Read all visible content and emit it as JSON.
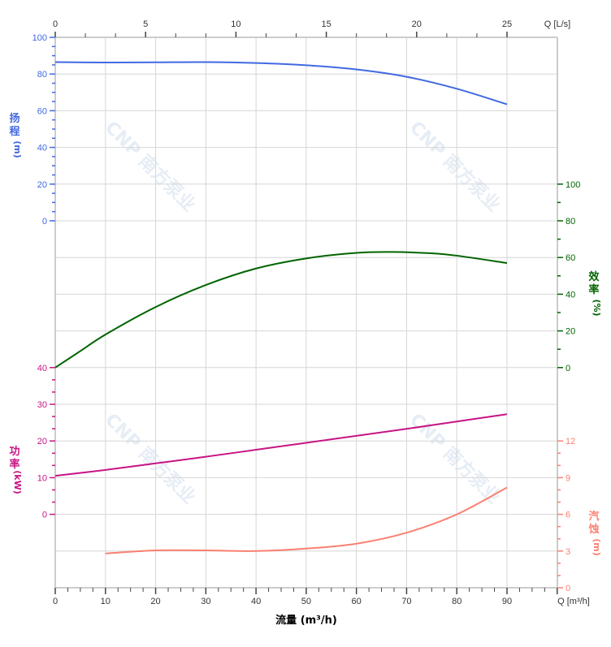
{
  "chart_data": {
    "type": "line",
    "title": "",
    "xlabel": "流量 (m³/h)",
    "x_axis_bottom": {
      "label": "Q [m³/h]",
      "range": [
        0,
        100
      ],
      "ticks": [
        0,
        10,
        20,
        30,
        40,
        50,
        60,
        70,
        80,
        90
      ]
    },
    "x_axis_top": {
      "label": "Q [L/s]",
      "ticks": [
        0,
        5,
        10,
        15,
        20,
        25
      ]
    },
    "grid": true,
    "watermark": "CNP 南方泵业",
    "series": [
      {
        "name": "扬程",
        "axis_label": [
          "扬",
          "程",
          "(m)"
        ],
        "color": "#4169e1",
        "axis": "left-top",
        "ylim": [
          0,
          100
        ],
        "ticks": [
          0,
          20,
          40,
          60,
          80,
          100
        ],
        "x": [
          0,
          10,
          20,
          30,
          40,
          50,
          60,
          70,
          80,
          90
        ],
        "y": [
          86.5,
          86.3,
          86.4,
          86.5,
          86.0,
          84.8,
          82.5,
          78.5,
          72.0,
          63.5
        ]
      },
      {
        "name": "效率",
        "axis_label": [
          "效",
          "率",
          "(%)"
        ],
        "color": "#006400",
        "axis": "right-middle",
        "ylim": [
          0,
          100
        ],
        "ticks": [
          0,
          20,
          40,
          60,
          80,
          100
        ],
        "x": [
          0,
          5,
          10,
          20,
          30,
          40,
          50,
          60,
          67,
          75,
          80,
          90
        ],
        "y": [
          0,
          9,
          18,
          33,
          45,
          54,
          59.5,
          62.5,
          63,
          62.3,
          61,
          57
        ]
      },
      {
        "name": "功率",
        "axis_label": [
          "功",
          "率",
          "(kW)"
        ],
        "color": "#c71585",
        "axis": "left-bottom",
        "ylim": [
          0,
          40
        ],
        "ticks": [
          0,
          10,
          20,
          30,
          40
        ],
        "x": [
          0,
          10,
          20,
          30,
          40,
          50,
          60,
          70,
          80,
          90
        ],
        "y": [
          10.5,
          12.1,
          13.9,
          15.7,
          17.6,
          19.5,
          21.4,
          23.3,
          25.3,
          27.3
        ]
      },
      {
        "name": "汽蚀",
        "axis_label": [
          "汽",
          "蚀",
          "(m)"
        ],
        "color": "#fa8072",
        "axis": "right-bottom",
        "ylim": [
          0,
          12
        ],
        "ticks": [
          0,
          3,
          6,
          9,
          12
        ],
        "x": [
          10,
          20,
          30,
          40,
          50,
          60,
          70,
          80,
          90
        ],
        "y": [
          2.8,
          3.05,
          3.05,
          3.0,
          3.2,
          3.6,
          4.5,
          6.0,
          8.2
        ]
      }
    ]
  }
}
